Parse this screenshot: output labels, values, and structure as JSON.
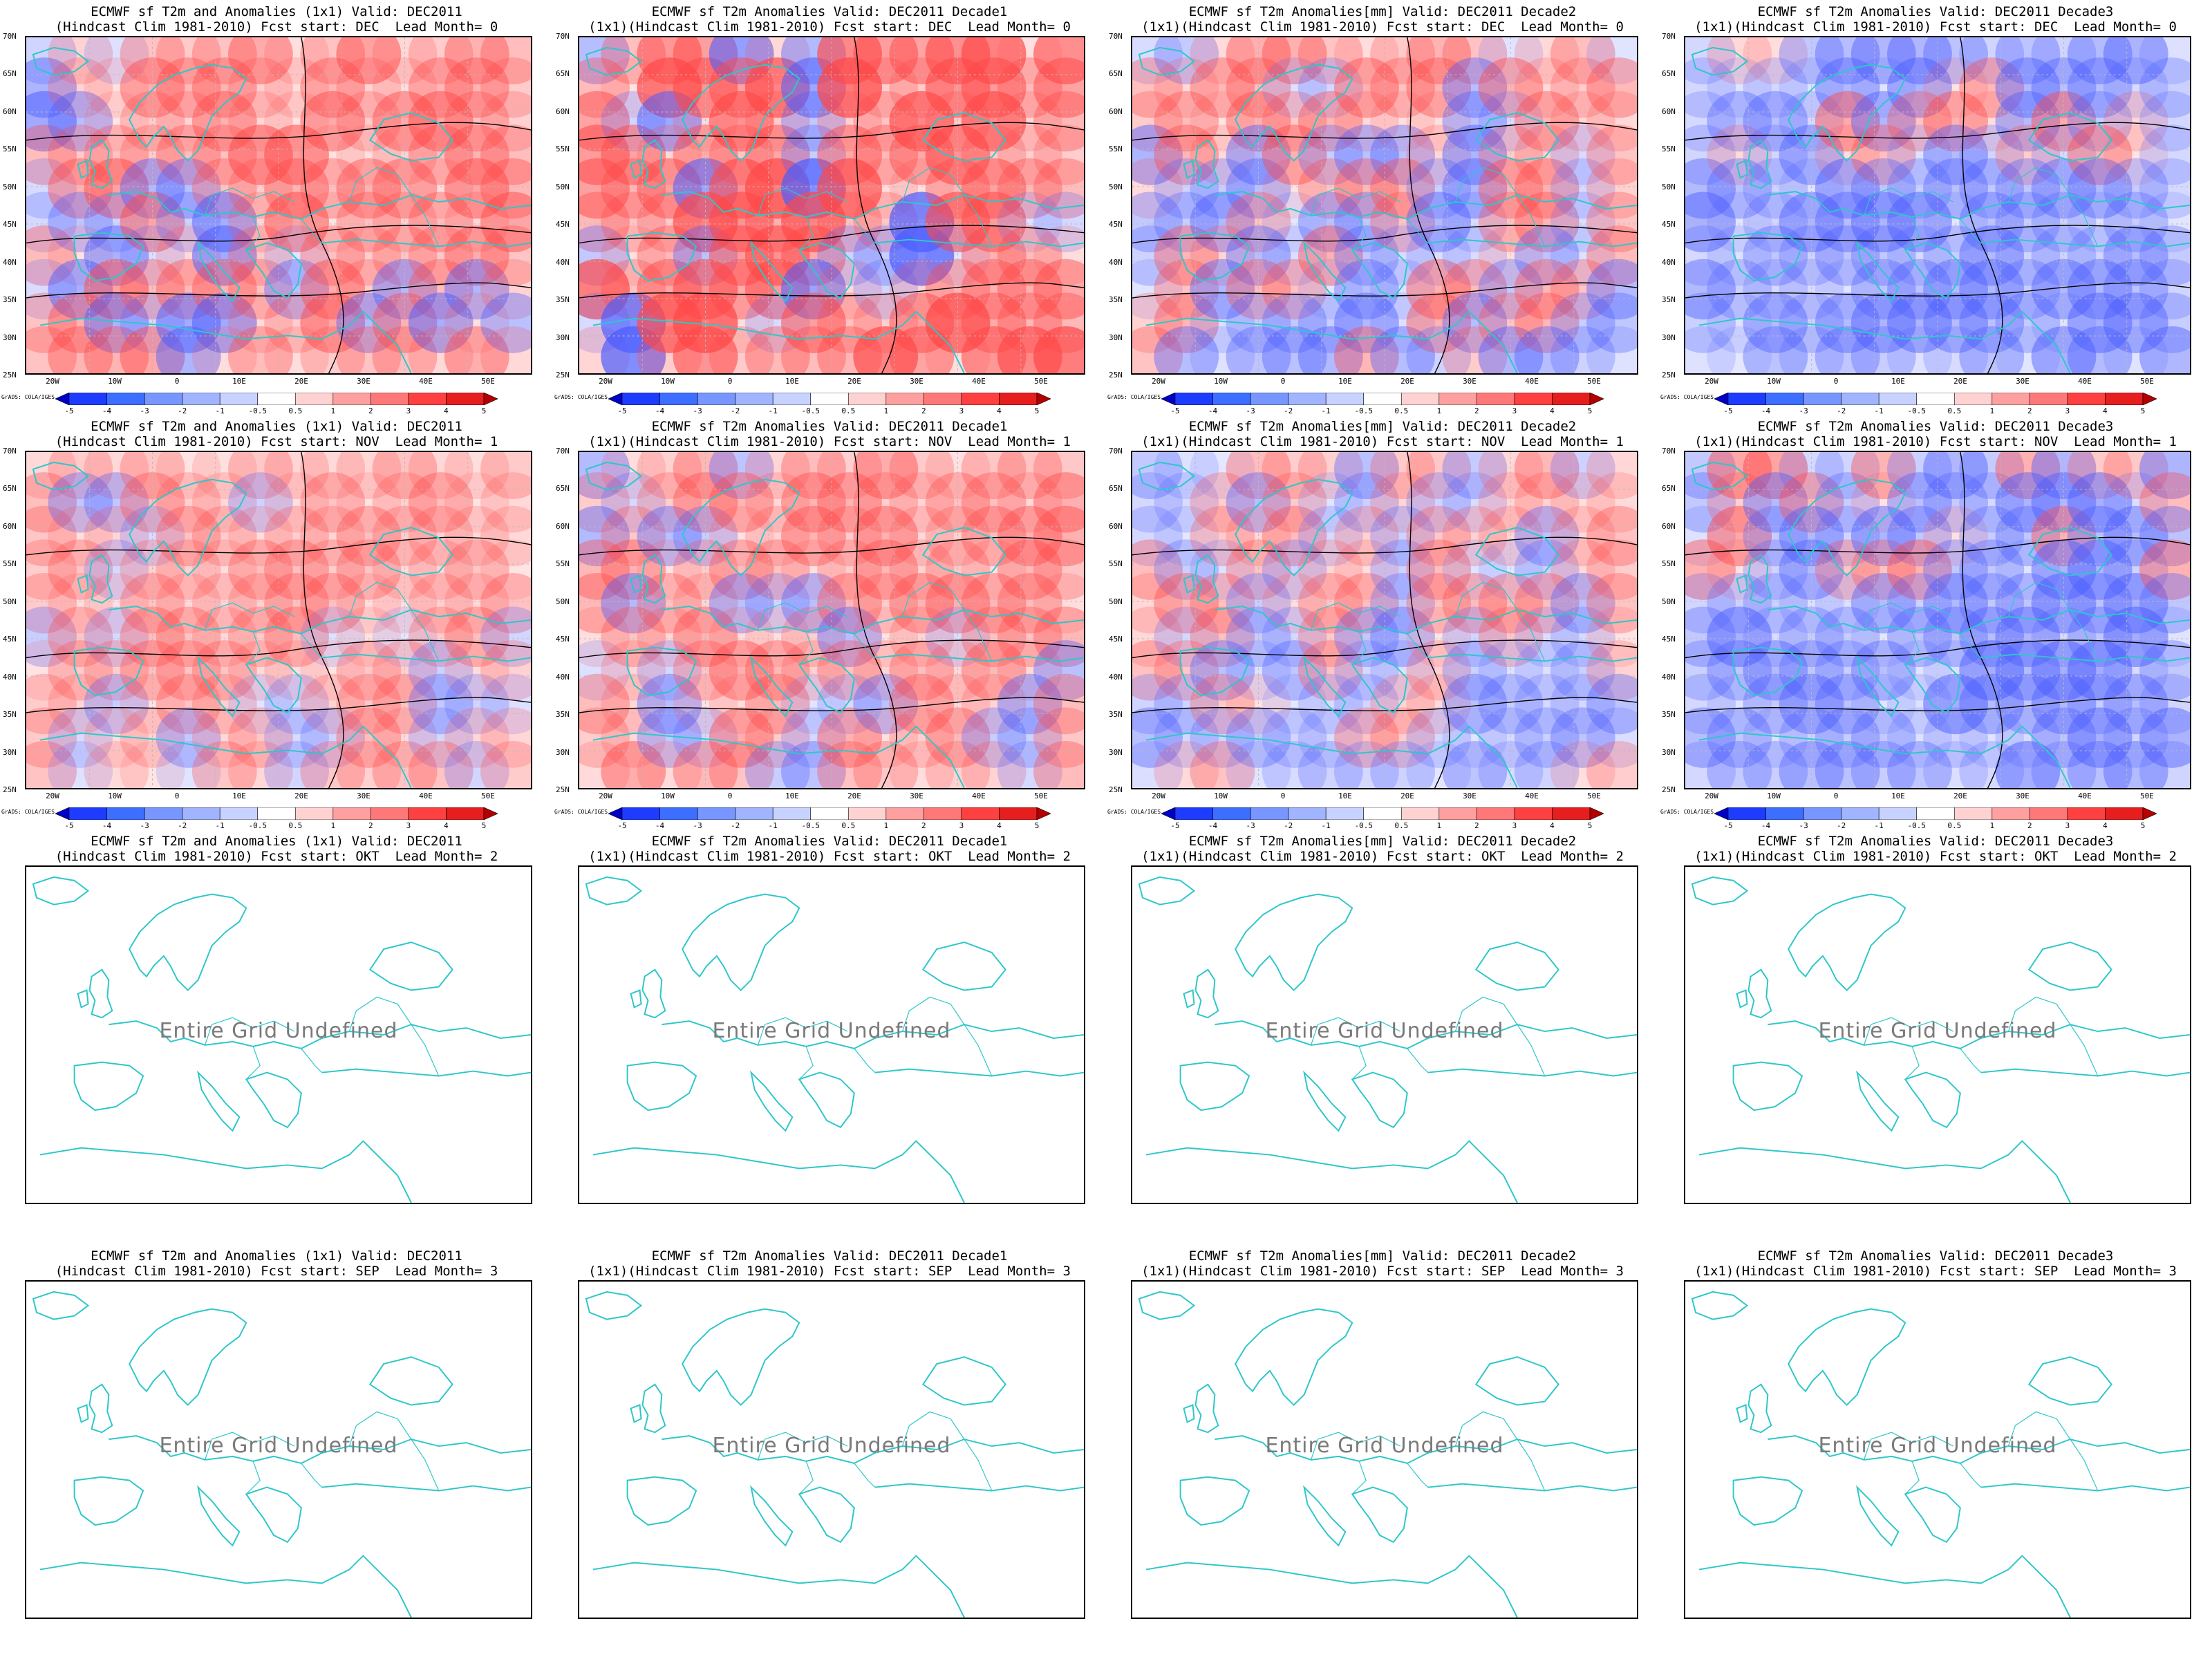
{
  "panels": [
    {
      "title1": "ECMWF sf T2m and Anomalies (1x1) Valid: DEC2011",
      "title2": "(Hindcast Clim 1981-2010) Fcst start: DEC  Lead Month= 0",
      "state": "data",
      "tone": "warm",
      "intensity": 0.65
    },
    {
      "title1": "ECMWF sf T2m Anomalies Valid: DEC2011 Decade1",
      "title2": "(1x1)(Hindcast Clim 1981-2010) Fcst start: DEC  Lead Month= 0",
      "state": "data",
      "tone": "warm",
      "intensity": 0.95
    },
    {
      "title1": "ECMWF sf T2m Anomalies[mm] Valid: DEC2011 Decade2",
      "title2": "(1x1)(Hindcast Clim 1981-2010) Fcst start: DEC  Lead Month= 0",
      "state": "data",
      "tone": "mixed",
      "intensity": 0.5
    },
    {
      "title1": "ECMWF sf T2m Anomalies Valid: DEC2011 Decade3",
      "title2": "(1x1)(Hindcast Clim 1981-2010) Fcst start: DEC  Lead Month= 0",
      "state": "data",
      "tone": "cool",
      "intensity": 0.55
    },
    {
      "title1": "ECMWF sf T2m and Anomalies (1x1) Valid: DEC2011",
      "title2": "(Hindcast Clim 1981-2010) Fcst start: NOV  Lead Month= 1",
      "state": "data",
      "tone": "warm",
      "intensity": 0.35
    },
    {
      "title1": "ECMWF sf T2m Anomalies Valid: DEC2011 Decade1",
      "title2": "(1x1)(Hindcast Clim 1981-2010) Fcst start: NOV  Lead Month= 1",
      "state": "data",
      "tone": "warm",
      "intensity": 0.5
    },
    {
      "title1": "ECMWF sf T2m Anomalies[mm] Valid: DEC2011 Decade2",
      "title2": "(1x1)(Hindcast Clim 1981-2010) Fcst start: NOV  Lead Month= 1",
      "state": "data",
      "tone": "mixed",
      "intensity": 0.4
    },
    {
      "title1": "ECMWF sf T2m Anomalies Valid: DEC2011 Decade3",
      "title2": "(1x1)(Hindcast Clim 1981-2010) Fcst start: NOV  Lead Month= 1",
      "state": "data",
      "tone": "cool",
      "intensity": 0.6
    },
    {
      "title1": "ECMWF sf T2m and Anomalies (1x1) Valid: DEC2011",
      "title2": "(Hindcast Clim 1981-2010) Fcst start: OKT  Lead Month= 2",
      "state": "undefined"
    },
    {
      "title1": "ECMWF sf T2m Anomalies Valid: DEC2011 Decade1",
      "title2": "(1x1)(Hindcast Clim 1981-2010) Fcst start: OKT  Lead Month= 2",
      "state": "undefined"
    },
    {
      "title1": "ECMWF sf T2m Anomalies[mm] Valid: DEC2011 Decade2",
      "title2": "(1x1)(Hindcast Clim 1981-2010) Fcst start: OKT  Lead Month= 2",
      "state": "undefined"
    },
    {
      "title1": "ECMWF sf T2m Anomalies Valid: DEC2011 Decade3",
      "title2": "(1x1)(Hindcast Clim 1981-2010) Fcst start: OKT  Lead Month= 2",
      "state": "undefined"
    },
    {
      "title1": "ECMWF sf T2m and Anomalies (1x1) Valid: DEC2011",
      "title2": "(Hindcast Clim 1981-2010) Fcst start: SEP  Lead Month= 3",
      "state": "undefined"
    },
    {
      "title1": "ECMWF sf T2m Anomalies Valid: DEC2011 Decade1",
      "title2": "(1x1)(Hindcast Clim 1981-2010) Fcst start: SEP  Lead Month= 3",
      "state": "undefined"
    },
    {
      "title1": "ECMWF sf T2m Anomalies[mm] Valid: DEC2011 Decade2",
      "title2": "(1x1)(Hindcast Clim 1981-2010) Fcst start: SEP  Lead Month= 3",
      "state": "undefined"
    },
    {
      "title1": "ECMWF sf T2m Anomalies Valid: DEC2011 Decade3",
      "title2": "(1x1)(Hindcast Clim 1981-2010) Fcst start: SEP  Lead Month= 3",
      "state": "undefined"
    }
  ],
  "undefined_text": "Entire Grid Undefined",
  "lat_labels": [
    "70N",
    "65N",
    "60N",
    "55N",
    "50N",
    "45N",
    "40N",
    "35N",
    "30N",
    "25N"
  ],
  "lon_labels": [
    "20W",
    "10W",
    "0",
    "10E",
    "20E",
    "30E",
    "40E",
    "50E"
  ],
  "colorbar": {
    "labels": [
      "-5",
      "-4",
      "-3",
      "-2",
      "-1",
      "-0.5",
      "0.5",
      "1",
      "2",
      "3",
      "4",
      "5"
    ],
    "colors": [
      "#0000c8",
      "#1e3cff",
      "#3c6eff",
      "#7896ff",
      "#a0b4ff",
      "#c8d2ff",
      "#ffffff",
      "#ffd2d2",
      "#ffa0a0",
      "#ff7878",
      "#ff4040",
      "#e61e1e",
      "#b40000"
    ]
  },
  "grads_credit": "GrADS: COLA/IGES",
  "colors": {
    "coast": "#2ec7c9",
    "contour": "#000000",
    "warm": "#ff4848",
    "cool": "#4a5cff"
  }
}
